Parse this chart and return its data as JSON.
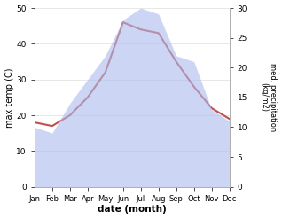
{
  "months": [
    "Jan",
    "Feb",
    "Mar",
    "Apr",
    "May",
    "Jun",
    "Jul",
    "Aug",
    "Sep",
    "Oct",
    "Nov",
    "Dec"
  ],
  "month_indices": [
    1,
    2,
    3,
    4,
    5,
    6,
    7,
    8,
    9,
    10,
    11,
    12
  ],
  "max_temp": [
    18,
    17,
    20,
    25,
    32,
    46,
    44,
    43,
    35,
    28,
    22,
    19
  ],
  "precipitation": [
    10,
    9,
    14,
    18,
    22,
    28,
    30,
    29,
    22,
    21,
    13,
    11
  ],
  "temp_color": "#c0504d",
  "precip_fill_color": "#aabbee",
  "precip_alpha": 0.6,
  "temp_ylim": [
    0,
    50
  ],
  "precip_ylim": [
    0,
    30
  ],
  "temp_yticks": [
    0,
    10,
    20,
    30,
    40,
    50
  ],
  "precip_yticks": [
    0,
    5,
    10,
    15,
    20,
    25,
    30
  ],
  "xlabel": "date (month)",
  "ylabel_left": "max temp (C)",
  "ylabel_right": "med. precipitation\n(kg/m2)",
  "bg_color": "#ffffff",
  "spine_color": "#aaaaaa",
  "grid_color": "#dddddd",
  "figsize": [
    3.18,
    2.47
  ],
  "dpi": 100
}
